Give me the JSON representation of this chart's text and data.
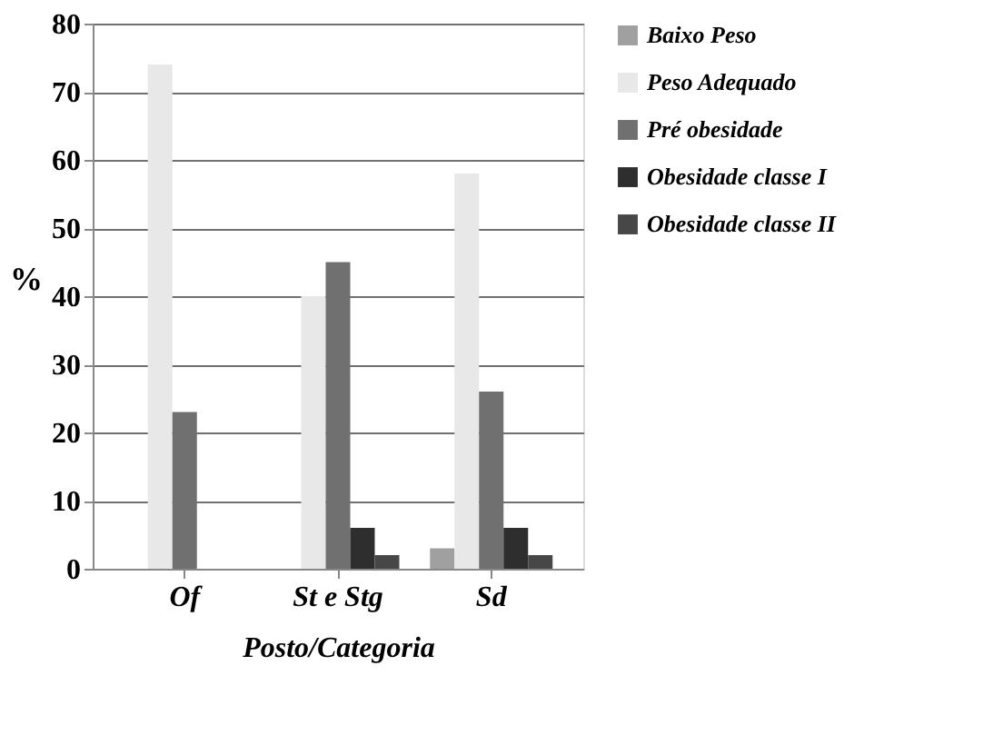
{
  "chart_data": {
    "type": "bar",
    "xlabel": "Posto/Categoria",
    "ylabel": "%",
    "categories": [
      "Of",
      "St e Stg",
      "Sd"
    ],
    "series": [
      {
        "name": "Baixo Peso",
        "color": "#a0a0a0",
        "values": [
          0,
          0,
          3
        ]
      },
      {
        "name": "Peso Adequado",
        "color": "#e8e8e8",
        "values": [
          74,
          40,
          58
        ]
      },
      {
        "name": "Pré obesidade",
        "color": "#707070",
        "values": [
          23,
          45,
          26
        ]
      },
      {
        "name": "Obesidade classe I",
        "color": "#2e2e2e",
        "values": [
          0,
          6,
          6
        ]
      },
      {
        "name": "Obesidade classe II",
        "color": "#474747",
        "values": [
          0,
          2,
          2
        ]
      }
    ],
    "ylim": [
      0,
      80
    ],
    "yticks": [
      0,
      10,
      20,
      30,
      40,
      50,
      60,
      70,
      80
    ],
    "grid": "y",
    "legend": "right"
  }
}
